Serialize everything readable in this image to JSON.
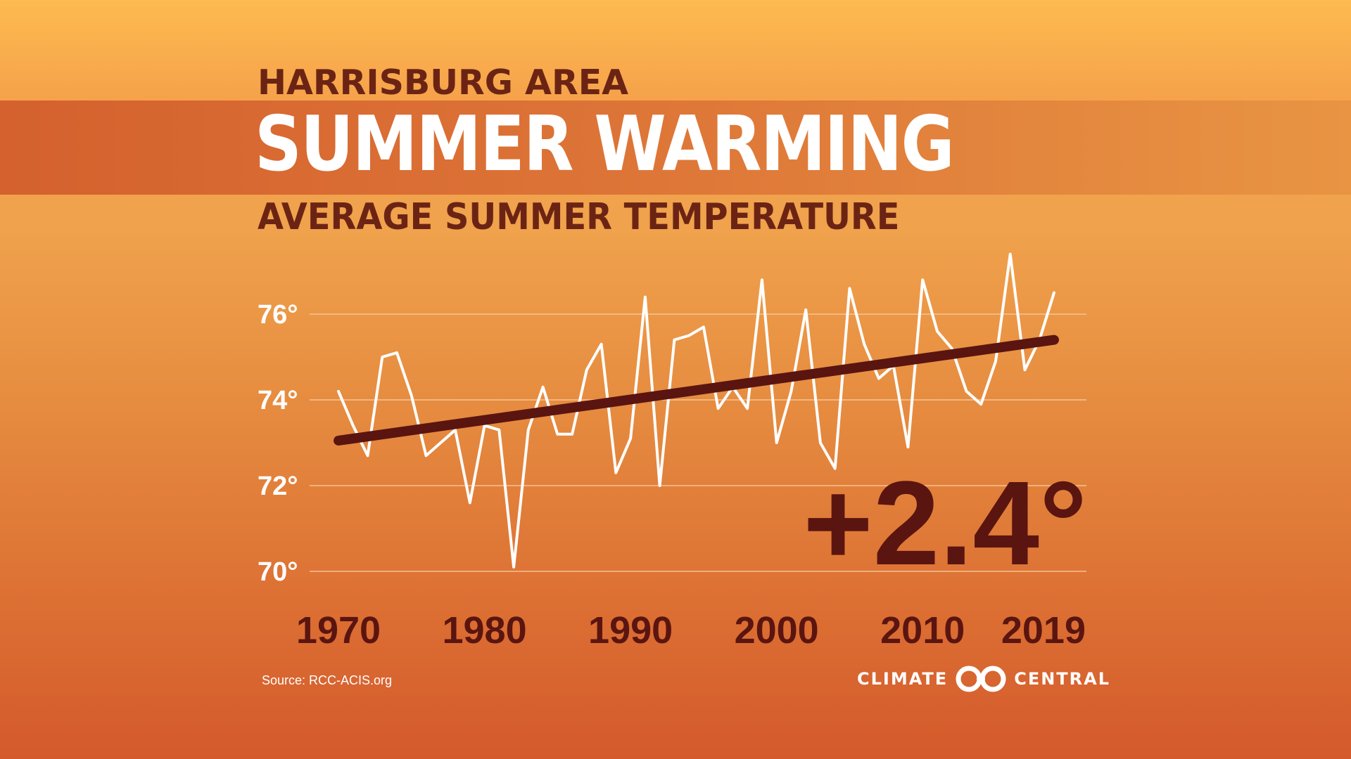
{
  "header": {
    "kicker": "HARRISBURG AREA",
    "title": "SUMMER WARMING",
    "subtitle": "AVERAGE SUMMER TEMPERATURE"
  },
  "footer": {
    "source": "Source: RCC-ACIS.org",
    "brand_left": "CLIMATE",
    "brand_right": "CENTRAL"
  },
  "colors": {
    "line": "#ffffff",
    "trend": "#5a1510",
    "grid": "#f6c9a0"
  },
  "chart_data": {
    "type": "line",
    "title": "AVERAGE SUMMER TEMPERATURE",
    "xlabel": "",
    "ylabel": "",
    "ylim": [
      70,
      77.5
    ],
    "xlim": [
      1970,
      2019
    ],
    "yticks": [
      70,
      72,
      74,
      76
    ],
    "ytick_labels": [
      "70°",
      "72°",
      "74°",
      "76°"
    ],
    "xtick_labels": [
      "1970",
      "1980",
      "1990",
      "2000",
      "2010",
      "2019"
    ],
    "xtick_values": [
      1970,
      1980,
      1990,
      2000,
      2010,
      2019
    ],
    "grid": true,
    "annotation": "+2.4°",
    "x": [
      1970,
      1971,
      1972,
      1973,
      1974,
      1975,
      1976,
      1977,
      1978,
      1979,
      1980,
      1981,
      1982,
      1983,
      1984,
      1985,
      1986,
      1987,
      1988,
      1989,
      1990,
      1991,
      1992,
      1993,
      1994,
      1995,
      1996,
      1997,
      1998,
      1999,
      2000,
      2001,
      2002,
      2003,
      2004,
      2005,
      2006,
      2007,
      2008,
      2009,
      2010,
      2011,
      2012,
      2013,
      2014,
      2015,
      2016,
      2017,
      2018,
      2019
    ],
    "series": [
      {
        "values": [
          74.2,
          73.4,
          72.7,
          75.0,
          75.1,
          74.1,
          72.7,
          73.0,
          73.3,
          71.6,
          73.4,
          73.3,
          70.1,
          73.3,
          74.3,
          73.2,
          73.2,
          74.7,
          75.3,
          72.3,
          73.1,
          76.4,
          72.0,
          75.4,
          75.5,
          75.7,
          73.8,
          74.3,
          73.8,
          76.8,
          73.0,
          74.2,
          76.1,
          73.0,
          72.4,
          76.6,
          75.3,
          74.5,
          74.8,
          72.9,
          76.8,
          75.6,
          75.2,
          74.2,
          73.9,
          74.9,
          77.4,
          74.7,
          75.4,
          76.5
        ]
      }
    ],
    "trend": {
      "x": [
        1970,
        2019
      ],
      "y": [
        73.05,
        75.4
      ]
    }
  }
}
